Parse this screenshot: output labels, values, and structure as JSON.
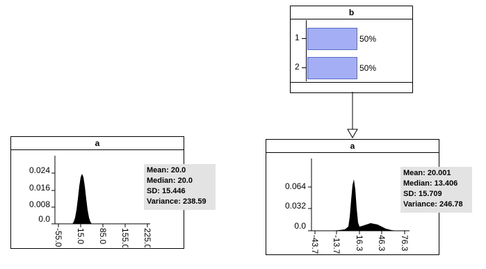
{
  "node_b": {
    "title": "b",
    "states": [
      {
        "label": "1",
        "percent_text": "50%",
        "value": 0.5
      },
      {
        "label": "2",
        "percent_text": "50%",
        "value": 0.5
      }
    ]
  },
  "node_a_prior": {
    "title": "a",
    "y_ticks": [
      "0.024",
      "0.016",
      "0.008",
      "0.0"
    ],
    "x_ticks": [
      "-55.0",
      "15.0",
      "85.0",
      "155.0",
      "225.0"
    ],
    "stats": {
      "mean": "Mean: 20.0",
      "median": "Median: 20.0",
      "sd": "SD: 15.446",
      "variance": "Variance: 238.59"
    }
  },
  "node_a_posterior": {
    "title": "a",
    "y_ticks": [
      "0.064",
      "0.032",
      "0.0"
    ],
    "x_ticks": [
      "-43.7",
      "-13.7",
      "16.3",
      "46.3",
      "76.3"
    ],
    "stats": {
      "mean": "Mean: 20.001",
      "median": "Median: 13.406",
      "sd": "SD: 15.709",
      "variance": "Variance: 246.78"
    }
  },
  "colors": {
    "state_bar_fill": "#a3aef5",
    "stats_bg": "#e3e3e3",
    "density_fill": "#000000"
  }
}
